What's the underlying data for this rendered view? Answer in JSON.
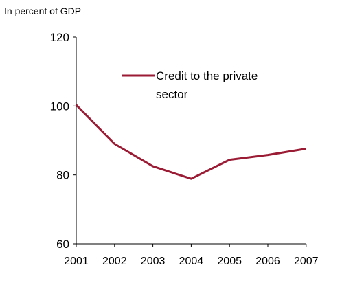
{
  "chart_data": {
    "type": "line",
    "ylabel": "In percent of GDP",
    "x": [
      "2001",
      "2002",
      "2003",
      "2004",
      "2005",
      "2006",
      "2007"
    ],
    "ylim": [
      60,
      120
    ],
    "yticks": [
      60,
      80,
      100,
      120
    ],
    "grid": false,
    "legend_position": "top-right",
    "series": [
      {
        "name": "Credit to the private sector",
        "name_lines": [
          "Credit to the private",
          "sector"
        ],
        "color": "#9B1B34",
        "values": [
          100.3,
          89.0,
          82.5,
          78.9,
          84.4,
          85.8,
          87.6
        ]
      }
    ]
  }
}
